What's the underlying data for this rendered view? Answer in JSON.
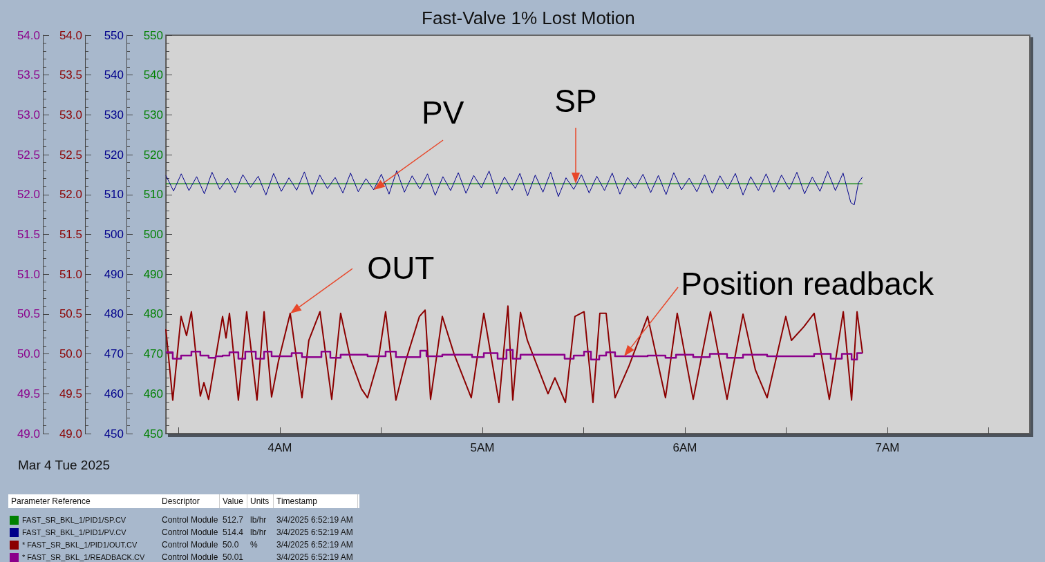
{
  "chart_data": [
    {
      "type": "line",
      "title": "Fast-Valve 1% Lost Motion",
      "annotations": [
        {
          "text": "PV",
          "x": 4.463,
          "y": 511.2
        },
        {
          "text": "SP",
          "x": 5.461,
          "y": 512.7
        },
        "Mar 4 Tue 2025"
      ],
      "xlim": [
        3.437,
        7.703
      ],
      "xticks": [
        {
          "value": 3.5,
          "label": null
        },
        {
          "value": 4,
          "label": "4AM"
        },
        {
          "value": 4.5,
          "label": null
        },
        {
          "value": 5,
          "label": "5AM"
        },
        {
          "value": 5.5,
          "label": null
        },
        {
          "value": 6,
          "label": "6AM"
        },
        {
          "value": 6.5,
          "label": null
        },
        {
          "value": 7,
          "label": "7AM"
        },
        {
          "value": 7.5,
          "label": null
        }
      ],
      "ylim": [
        450,
        550
      ],
      "yticks": [
        450,
        460,
        470,
        480,
        490,
        500,
        510,
        520,
        530,
        540,
        550
      ],
      "y2lim": [
        450,
        550
      ],
      "y2ticks": [
        450,
        460,
        470,
        480,
        490,
        500,
        510,
        520,
        530,
        540,
        550
      ],
      "grid": false,
      "marker": "none",
      "legend": "bottom",
      "legend_title": "Parameter Reference",
      "series": [
        {
          "name": "FAST_SR_BKL_1/PID1/SP.CV",
          "color": "#008000",
          "x": [
            3.437,
            6.877
          ],
          "values": [
            512.7,
            512.7
          ]
        },
        {
          "name": "FAST_SR_BKL_1/PID1/PV.CV",
          "color": "#00008b",
          "axis": "y2",
          "x": [
            3.437,
            3.475,
            3.513,
            3.551,
            3.589,
            3.627,
            3.665,
            3.703,
            3.741,
            3.779,
            3.817,
            3.855,
            3.893,
            3.931,
            3.969,
            4.007,
            4.045,
            4.083,
            4.121,
            4.159,
            4.197,
            4.235,
            4.273,
            4.311,
            4.349,
            4.387,
            4.425,
            4.463,
            4.501,
            4.539,
            4.577,
            4.615,
            4.653,
            4.691,
            4.729,
            4.767,
            4.805,
            4.843,
            4.881,
            4.919,
            4.957,
            4.995,
            5.033,
            5.071,
            5.109,
            5.147,
            5.185,
            5.223,
            5.261,
            5.299,
            5.337,
            5.375,
            5.413,
            5.451,
            5.489,
            5.527,
            5.565,
            5.603,
            5.641,
            5.679,
            5.717,
            5.755,
            5.793,
            5.831,
            5.869,
            5.907,
            5.945,
            5.983,
            6.021,
            6.059,
            6.097,
            6.135,
            6.173,
            6.211,
            6.249,
            6.287,
            6.325,
            6.363,
            6.401,
            6.439,
            6.477,
            6.515,
            6.553,
            6.591,
            6.629,
            6.667,
            6.705,
            6.743,
            6.781,
            6.819,
            6.836,
            6.857,
            6.877
          ],
          "values": [
            514.8,
            510.9,
            515.2,
            511.0,
            514.5,
            510.2,
            515.6,
            511.3,
            514.1,
            510.5,
            515.0,
            511.8,
            514.6,
            509.9,
            515.3,
            510.8,
            514.2,
            511.1,
            515.7,
            510.0,
            514.9,
            511.5,
            514.3,
            510.4,
            515.4,
            510.7,
            514.0,
            511.2,
            515.1,
            510.1,
            516.0,
            510.6,
            514.7,
            511.4,
            515.2,
            509.8,
            514.5,
            511.0,
            515.5,
            510.3,
            514.8,
            511.7,
            515.9,
            510.2,
            514.4,
            511.1,
            515.3,
            509.7,
            514.9,
            510.6,
            515.6,
            509.5,
            514.2,
            511.3,
            515.0,
            510.4,
            514.6,
            511.0,
            515.4,
            510.1,
            514.3,
            511.6,
            515.1,
            510.5,
            514.8,
            510.0,
            515.5,
            511.2,
            514.1,
            510.7,
            515.0,
            510.3,
            514.7,
            511.4,
            515.3,
            509.9,
            514.5,
            511.0,
            515.2,
            510.6,
            514.9,
            511.3,
            515.6,
            510.2,
            514.4,
            510.8,
            515.8,
            511.0,
            515.4,
            508.0,
            507.4,
            513.0,
            514.4
          ]
        }
      ]
    },
    {
      "type": "line",
      "annotations": [
        {
          "text": "OUT",
          "x": 4.051,
          "y": 50.51
        },
        {
          "text": "Position readback",
          "x": 5.7,
          "y": 49.97
        }
      ],
      "xlim": [
        3.437,
        7.703
      ],
      "tick_labels": "y",
      "ylim": [
        49,
        54
      ],
      "yticks": [
        {
          "value": 49,
          "label": "49.0"
        },
        49.5,
        {
          "value": 50,
          "label": "50.0"
        },
        50.5,
        {
          "value": 51,
          "label": "51.0"
        },
        51.5,
        {
          "value": 52,
          "label": "52.0"
        },
        52.5,
        {
          "value": 53,
          "label": "53.0"
        },
        53.5,
        {
          "value": 54,
          "label": "54.0"
        }
      ],
      "y2lim": [
        49,
        54
      ],
      "y2ticks": [
        {
          "value": 49,
          "label": "49.0"
        },
        49.5,
        {
          "value": 50,
          "label": "50.0"
        },
        50.5,
        {
          "value": 51,
          "label": "51.0"
        },
        51.5,
        {
          "value": 52,
          "label": "52.0"
        },
        52.5,
        {
          "value": 53,
          "label": "53.0"
        },
        53.5,
        {
          "value": 54,
          "label": "54.0"
        }
      ],
      "marker": "none",
      "legend": "bottom",
      "series": [
        {
          "name": "* FAST_SR_BKL_1/PID1/OUT.CV",
          "color": "#8b0000",
          "x": [
            3.437,
            3.471,
            3.512,
            3.539,
            3.563,
            3.607,
            3.625,
            3.648,
            3.717,
            3.734,
            3.751,
            3.795,
            3.836,
            3.887,
            3.922,
            3.959,
            3.993,
            4.051,
            4.109,
            4.143,
            4.198,
            4.256,
            4.3,
            4.348,
            4.403,
            4.433,
            4.485,
            4.522,
            4.573,
            4.621,
            4.689,
            4.717,
            4.744,
            4.802,
            4.86,
            4.945,
            5.007,
            5.082,
            5.126,
            5.15,
            5.188,
            5.222,
            5.324,
            5.358,
            5.41,
            5.457,
            5.502,
            5.546,
            5.58,
            5.611,
            5.655,
            5.724,
            5.816,
            5.904,
            5.962,
            6.041,
            6.126,
            6.208,
            6.287,
            6.348,
            6.406,
            6.498,
            6.526,
            6.587,
            6.638,
            6.713,
            6.782,
            6.823,
            6.85,
            6.877
          ],
          "values": [
            50.31,
            49.42,
            50.47,
            50.23,
            50.53,
            49.47,
            49.64,
            49.43,
            50.47,
            50.2,
            50.51,
            49.42,
            50.53,
            49.42,
            50.53,
            49.46,
            49.91,
            50.51,
            49.45,
            50.17,
            50.53,
            49.43,
            50.51,
            49.94,
            49.56,
            49.45,
            49.91,
            50.53,
            49.42,
            49.91,
            50.47,
            50.55,
            49.43,
            50.47,
            50.0,
            49.45,
            50.51,
            49.39,
            50.6,
            49.42,
            50.52,
            50.17,
            49.5,
            49.7,
            49.39,
            50.47,
            50.53,
            49.39,
            50.51,
            50.51,
            49.45,
            49.85,
            50.47,
            49.45,
            50.51,
            49.43,
            50.53,
            49.43,
            50.5,
            49.8,
            49.45,
            50.47,
            50.17,
            50.34,
            50.51,
            49.43,
            50.53,
            49.42,
            50.53,
            50.01
          ]
        },
        {
          "name": "* FAST_SR_BKL_1/READBACK.CV",
          "color": "#8b008b",
          "axis": "y2",
          "type": "step",
          "x": [
            3.437,
            3.471,
            3.512,
            3.563,
            3.607,
            3.648,
            3.683,
            3.717,
            3.751,
            3.795,
            3.829,
            3.881,
            3.922,
            3.959,
            4.058,
            4.109,
            4.205,
            4.249,
            4.3,
            4.433,
            4.522,
            4.573,
            4.693,
            4.724,
            4.802,
            4.949,
            5.007,
            5.075,
            5.119,
            5.15,
            5.188,
            5.406,
            5.451,
            5.502,
            5.536,
            5.577,
            5.611,
            5.655,
            5.816,
            5.904,
            5.956,
            6.041,
            6.123,
            6.208,
            6.287,
            6.406,
            6.638,
            6.72,
            6.775,
            6.823,
            6.85,
            6.877
          ],
          "values": [
            50.02,
            49.94,
            49.98,
            50.03,
            49.98,
            49.95,
            49.97,
            49.98,
            50.02,
            49.94,
            50.03,
            49.94,
            50.03,
            49.97,
            50.01,
            49.96,
            50.03,
            49.95,
            49.99,
            49.97,
            50.03,
            49.96,
            50.04,
            49.97,
            49.99,
            49.96,
            50.01,
            49.94,
            50.05,
            49.94,
            49.99,
            49.94,
            49.98,
            50.03,
            49.93,
            49.98,
            50.02,
            49.97,
            49.98,
            49.95,
            49.99,
            49.96,
            50.0,
            49.95,
            49.99,
            49.97,
            50.0,
            49.94,
            50.0,
            49.93,
            50.01,
            50.01
          ]
        }
      ]
    },
    {
      "type": "other",
      "categories": [
        "Descriptor",
        "Value",
        "Units",
        "Timestamp"
      ],
      "cell_labels": [
        [
          "Control Module",
          "512.7",
          "lb/hr",
          "3/4/2025 6:52:19 AM"
        ],
        [
          "Control Module",
          "514.4",
          "lb/hr",
          "3/4/2025 6:52:19 AM"
        ],
        [
          "Control Module",
          "50.0",
          "%",
          "3/4/2025 6:52:19 AM"
        ],
        [
          "Control Module",
          "50.01",
          null,
          "3/4/2025 6:52:19 AM"
        ]
      ]
    }
  ]
}
